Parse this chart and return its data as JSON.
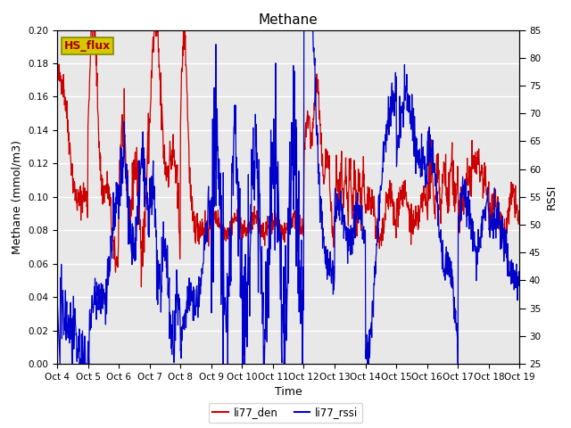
{
  "title": "Methane",
  "xlabel": "Time",
  "ylabel_left": "Methane (mmol/m3)",
  "ylabel_right": "RSSI",
  "ylim_left": [
    0.0,
    0.2
  ],
  "ylim_right": [
    25,
    85
  ],
  "yticks_left": [
    0.0,
    0.02,
    0.04,
    0.06,
    0.08,
    0.1,
    0.12,
    0.14,
    0.16,
    0.18,
    0.2
  ],
  "yticks_right": [
    25,
    30,
    35,
    40,
    45,
    50,
    55,
    60,
    65,
    70,
    75,
    80,
    85
  ],
  "xtick_labels": [
    "Oct 4",
    "Oct 5",
    "Oct 6",
    "Oct 7",
    "Oct 8",
    "Oct 9",
    "Oct 10",
    "Oct 11",
    "Oct 12",
    "Oct 13",
    "Oct 14",
    "Oct 15",
    "Oct 16",
    "Oct 17",
    "Oct 18",
    "Oct 19"
  ],
  "line_red_color": "#cc0000",
  "line_blue_color": "#0000cc",
  "legend_label_red": "li77_den",
  "legend_label_blue": "li77_rssi",
  "box_label": "HS_flux",
  "box_bg": "#d4c900",
  "box_edge": "#888800",
  "plot_bg": "#e8e8e8",
  "fig_bg": "#ffffff",
  "title_fontsize": 11,
  "axis_fontsize": 9,
  "tick_fontsize": 7.5,
  "legend_fontsize": 8.5,
  "line_width": 0.9
}
